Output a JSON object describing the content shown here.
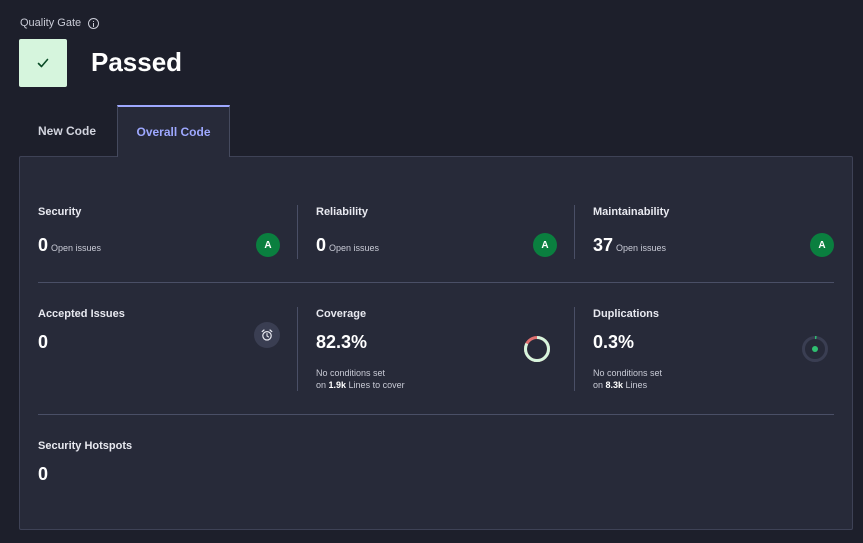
{
  "quality_gate": {
    "label": "Quality Gate",
    "status": "Passed",
    "status_color": "#d6f5dd",
    "check_color": "#0a4a26"
  },
  "tabs": [
    {
      "label": "New Code",
      "active": false
    },
    {
      "label": "Overall Code",
      "active": true
    }
  ],
  "metrics": {
    "security": {
      "title": "Security",
      "value": "0",
      "unit": "Open issues",
      "grade": "A"
    },
    "reliability": {
      "title": "Reliability",
      "value": "0",
      "unit": "Open issues",
      "grade": "A"
    },
    "maintainability": {
      "title": "Maintainability",
      "value": "37",
      "unit": "Open issues",
      "grade": "A"
    },
    "accepted_issues": {
      "title": "Accepted Issues",
      "value": "0",
      "icon": "alarm-clock-icon"
    },
    "coverage": {
      "title": "Coverage",
      "value": "82.3%",
      "line1": "No conditions set",
      "line2_prefix": "on ",
      "line2_bold": "1.9k",
      "line2_suffix": " Lines to cover",
      "fraction": 0.823
    },
    "duplications": {
      "title": "Duplications",
      "value": "0.3%",
      "line1": "No conditions set",
      "line2_prefix": "on ",
      "line2_bold": "8.3k",
      "line2_suffix": " Lines",
      "fraction": 0.003
    },
    "security_hotspots": {
      "title": "Security Hotspots",
      "value": "0"
    }
  },
  "colors": {
    "grade_a": "#0a7f3f",
    "accent": "#9ea8ff",
    "coverage_good": "#d6f5dd",
    "coverage_bad": "#e07070",
    "dup_track": "#3a3e52",
    "dup_fill": "#2fbf71"
  }
}
